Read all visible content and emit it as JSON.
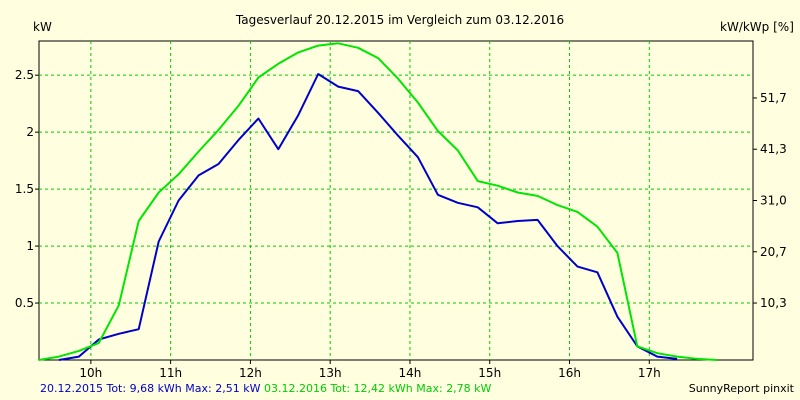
{
  "chart_data": {
    "type": "line",
    "title": "Tagesverlauf 20.12.2015 im Vergleich zum 03.12.2016",
    "ylabel_left": "kW",
    "ylabel_right": "kW/kWp [%]",
    "xlim": [
      9.35,
      18.3
    ],
    "ylim": [
      0,
      2.8
    ],
    "x_ticks": [
      10,
      11,
      12,
      13,
      14,
      15,
      16,
      17
    ],
    "x_tick_labels": [
      "10h",
      "11h",
      "12h",
      "13h",
      "14h",
      "15h",
      "16h",
      "17h"
    ],
    "y_ticks": [
      0.5,
      1,
      1.5,
      2,
      2.5
    ],
    "y_tick_labels": [
      "0.5",
      "1",
      "1.5",
      "2",
      "2.5"
    ],
    "y2_ticks": [
      0.5,
      0.95,
      1.4,
      1.85,
      2.3
    ],
    "y2_tick_labels": [
      "10,3",
      "20,7",
      "31,0",
      "41,3",
      "51,7"
    ],
    "grid": true,
    "series": [
      {
        "name": "20.12.2015",
        "color": "#0000CC",
        "x": [
          9.6,
          9.85,
          10.1,
          10.35,
          10.6,
          10.85,
          11.1,
          11.35,
          11.6,
          11.85,
          12.1,
          12.35,
          12.6,
          12.85,
          13.1,
          13.35,
          13.6,
          13.85,
          14.1,
          14.35,
          14.6,
          14.85,
          15.1,
          15.35,
          15.6,
          15.85,
          16.1,
          16.35,
          16.6,
          16.85,
          17.1,
          17.35
        ],
        "y": [
          0.0,
          0.03,
          0.18,
          0.23,
          0.27,
          1.04,
          1.4,
          1.62,
          1.72,
          1.93,
          2.12,
          1.85,
          2.15,
          2.51,
          2.4,
          2.36,
          2.17,
          1.97,
          1.78,
          1.45,
          1.38,
          1.34,
          1.2,
          1.22,
          1.23,
          1.0,
          0.82,
          0.77,
          0.38,
          0.12,
          0.03,
          0.01
        ]
      },
      {
        "name": "03.12.2016",
        "color": "#00E600",
        "x": [
          9.35,
          9.6,
          9.85,
          10.1,
          10.35,
          10.6,
          10.85,
          11.1,
          11.35,
          11.6,
          11.85,
          12.1,
          12.35,
          12.6,
          12.85,
          13.1,
          13.35,
          13.6,
          13.85,
          14.1,
          14.35,
          14.6,
          14.85,
          15.1,
          15.35,
          15.6,
          15.85,
          16.1,
          16.35,
          16.6,
          16.85,
          17.1,
          17.35,
          17.6,
          17.85
        ],
        "y": [
          0.0,
          0.03,
          0.08,
          0.15,
          0.48,
          1.22,
          1.47,
          1.63,
          1.83,
          2.02,
          2.23,
          2.48,
          2.6,
          2.7,
          2.76,
          2.78,
          2.74,
          2.65,
          2.47,
          2.26,
          2.01,
          1.84,
          1.57,
          1.53,
          1.47,
          1.44,
          1.36,
          1.3,
          1.17,
          0.94,
          0.12,
          0.06,
          0.03,
          0.01,
          0.0
        ]
      }
    ]
  },
  "footer": {
    "legend1": "20.12.2015 Tot: 9,68 kWh Max: 2,51 kW",
    "legend2": "03.12.2016 Tot: 12,42 kWh Max: 2,78 kW",
    "credit": "SunnyReport pinxit"
  }
}
